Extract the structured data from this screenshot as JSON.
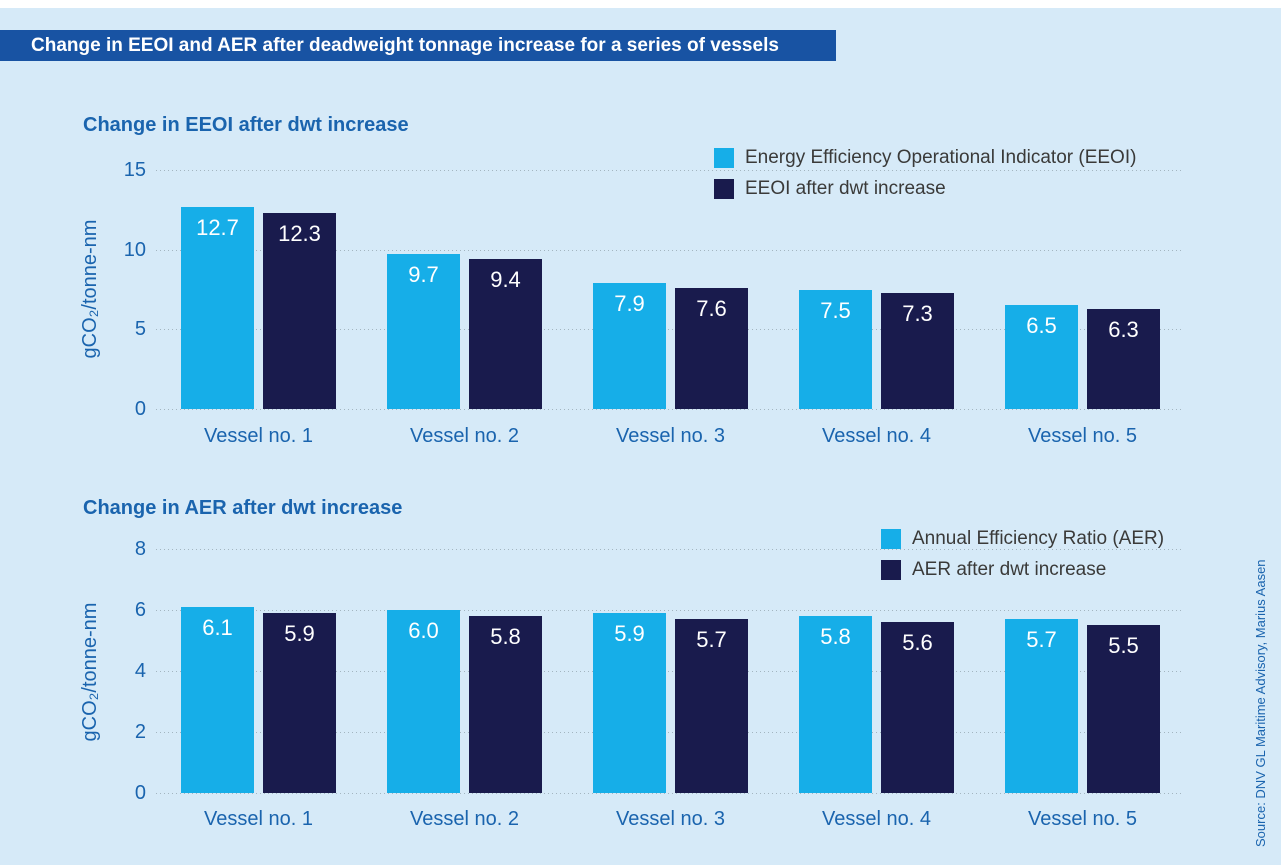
{
  "banner": {
    "title": "Change in EEOI and AER after deadweight tonnage increase for a series of vessels"
  },
  "source_note": "Source: DNV GL Maritime Advisory, Marius Aasen",
  "colors": {
    "background": "#d6eaf8",
    "banner": "#1853a3",
    "series_light_blue": "#16aee8",
    "series_dark_navy": "#191b4d",
    "heading_blue": "#1a64ae",
    "legend_text": "#3a3a39",
    "gridline": "#a3b5c0",
    "value_label": "#ffffff"
  },
  "chart_data": [
    {
      "type": "bar",
      "title": "Change in EEOI after dwt increase",
      "ylabel": "gCO₂/tonne-nm",
      "xlabel": "",
      "categories": [
        "Vessel no. 1",
        "Vessel no. 2",
        "Vessel no. 3",
        "Vessel no. 4",
        "Vessel no. 5"
      ],
      "series": [
        {
          "name": "Energy Efficiency Operational Indicator (EEOI)",
          "color": "#16aee8",
          "values": [
            12.7,
            9.7,
            7.9,
            7.5,
            6.5
          ]
        },
        {
          "name": "EEOI after dwt increase",
          "color": "#191b4d",
          "values": [
            12.3,
            9.4,
            7.6,
            7.3,
            6.3
          ]
        }
      ],
      "ylim": [
        0,
        15
      ],
      "yticks": [
        0,
        5,
        10,
        15
      ],
      "grid": "horizontal-dotted",
      "legend_position": "top-right",
      "value_labels": "inside-bar-top"
    },
    {
      "type": "bar",
      "title": "Change in AER after dwt increase",
      "ylabel": "gCO₂/tonne-nm",
      "xlabel": "",
      "categories": [
        "Vessel no. 1",
        "Vessel no. 2",
        "Vessel no. 3",
        "Vessel no. 4",
        "Vessel no. 5"
      ],
      "series": [
        {
          "name": "Annual Efficiency Ratio (AER)",
          "color": "#16aee8",
          "values": [
            6.1,
            6.0,
            5.9,
            5.8,
            5.7
          ]
        },
        {
          "name": "AER after dwt increase",
          "color": "#191b4d",
          "values": [
            5.9,
            5.8,
            5.7,
            5.6,
            5.5
          ]
        }
      ],
      "ylim": [
        0,
        8
      ],
      "yticks": [
        0,
        2,
        4,
        6,
        8
      ],
      "grid": "horizontal-dotted",
      "legend_position": "top-right",
      "value_labels": "inside-bar-top"
    }
  ]
}
